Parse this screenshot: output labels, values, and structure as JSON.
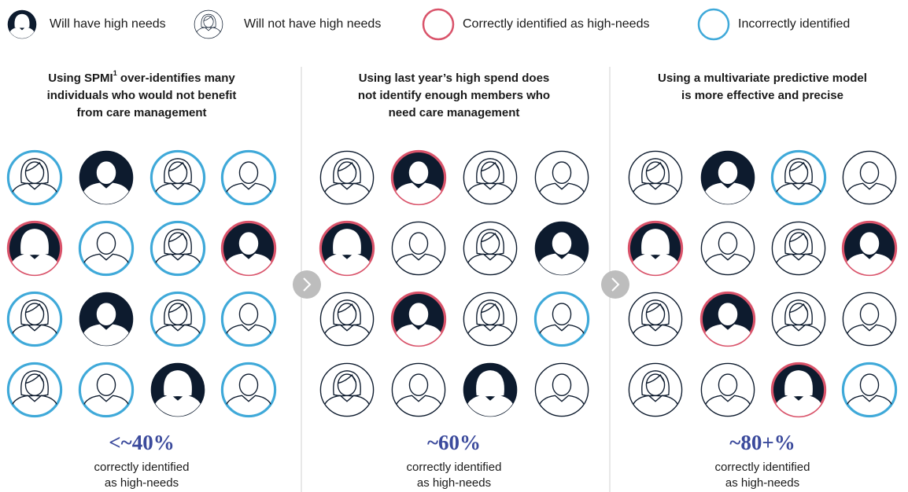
{
  "legend": [
    "Will have high needs",
    "Will not have high needs",
    "Correctly identified as high-needs",
    "Incorrectly identified"
  ],
  "panels": [
    {
      "title": {
        "first": "Using SPMI",
        "sup": "1",
        "rest": " over-identifies many",
        "lines": [
          "individuals who would not benefit",
          "from care management"
        ]
      },
      "stat": "<~40%",
      "caption": [
        "correctly identified",
        "as high-needs"
      ]
    },
    {
      "title": {
        "first": "Using last year’s high spend does",
        "lines": [
          "not identify enough members who",
          "need care management"
        ]
      },
      "stat": "~60%",
      "caption": [
        "correctly identified",
        "as high-needs"
      ]
    },
    {
      "title": {
        "first": "Using a multivariate predictive model",
        "lines": [
          "is more effective and precise"
        ]
      },
      "stat": "~80+%",
      "caption": [
        "correctly identified",
        "as high-needs"
      ]
    }
  ]
}
